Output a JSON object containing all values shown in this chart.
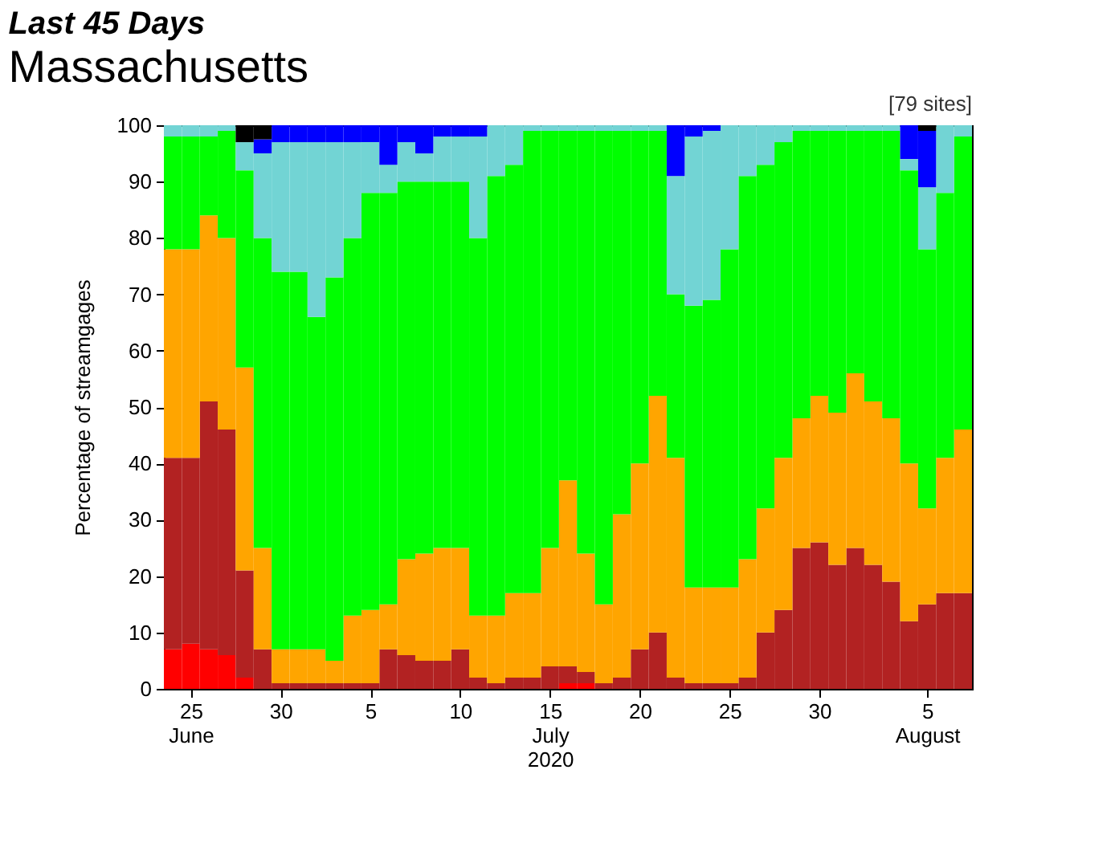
{
  "chart_data": {
    "type": "bar",
    "stacked": true,
    "title": "Last 45 Days",
    "subtitle": "Massachusetts",
    "ylabel": "Percentage of streamgages",
    "annotations": [
      "[79 sites]"
    ],
    "x": [
      "2020-06-24",
      "2020-06-25",
      "2020-06-26",
      "2020-06-27",
      "2020-06-28",
      "2020-06-29",
      "2020-06-30",
      "2020-07-01",
      "2020-07-02",
      "2020-07-03",
      "2020-07-04",
      "2020-07-05",
      "2020-07-06",
      "2020-07-07",
      "2020-07-08",
      "2020-07-09",
      "2020-07-10",
      "2020-07-11",
      "2020-07-12",
      "2020-07-13",
      "2020-07-14",
      "2020-07-15",
      "2020-07-16",
      "2020-07-17",
      "2020-07-18",
      "2020-07-19",
      "2020-07-20",
      "2020-07-21",
      "2020-07-22",
      "2020-07-23",
      "2020-07-24",
      "2020-07-25",
      "2020-07-26",
      "2020-07-27",
      "2020-07-28",
      "2020-07-29",
      "2020-07-30",
      "2020-07-31",
      "2020-08-01",
      "2020-08-02",
      "2020-08-03",
      "2020-08-04",
      "2020-08-05",
      "2020-08-06",
      "2020-08-07"
    ],
    "series": [
      {
        "color": "#ff0000",
        "values": [
          7,
          8,
          7,
          6,
          2,
          0,
          0,
          0,
          0,
          0,
          0,
          0,
          0,
          0,
          0,
          0,
          0,
          0,
          0,
          0,
          0,
          0,
          1,
          1,
          0,
          0,
          0,
          0,
          0,
          0,
          0,
          0,
          0,
          0,
          0,
          0,
          0,
          0,
          0,
          0,
          0,
          0,
          0,
          0,
          0
        ]
      },
      {
        "color": "#b22222",
        "values": [
          34,
          33,
          44,
          40,
          19,
          7,
          1,
          1,
          1,
          1,
          1,
          1,
          7,
          6,
          5,
          5,
          7,
          2,
          1,
          2,
          2,
          4,
          3,
          2,
          1,
          2,
          7,
          10,
          2,
          1,
          1,
          1,
          2,
          10,
          14,
          25,
          26,
          22,
          25,
          22,
          19,
          12,
          15,
          17,
          17
        ]
      },
      {
        "color": "#ffa500",
        "values": [
          37,
          37,
          33,
          34,
          36,
          18,
          6,
          6,
          6,
          4,
          12,
          13,
          8,
          17,
          19,
          20,
          18,
          11,
          12,
          15,
          15,
          21,
          33,
          21,
          14,
          29,
          33,
          42,
          39,
          17,
          17,
          17,
          21,
          22,
          27,
          23,
          26,
          27,
          31,
          29,
          29,
          28,
          17,
          24,
          29
        ]
      },
      {
        "color": "#00ff00",
        "values": [
          20,
          20,
          14,
          19,
          35,
          55,
          67,
          67,
          59,
          68,
          67,
          74,
          73,
          67,
          66,
          65,
          65,
          67,
          78,
          76,
          82,
          74,
          62,
          75,
          84,
          68,
          59,
          47,
          29,
          50,
          51,
          60,
          68,
          61,
          56,
          51,
          47,
          50,
          43,
          48,
          51,
          52,
          46,
          47,
          52
        ]
      },
      {
        "color": "#72d4d4",
        "values": [
          2,
          2,
          2,
          1,
          5,
          15,
          23,
          23,
          31,
          24,
          17,
          9,
          5,
          7,
          5,
          8,
          8,
          18,
          9,
          7,
          1,
          1,
          1,
          1,
          1,
          1,
          1,
          1,
          21,
          30,
          30,
          22,
          9,
          7,
          3,
          1,
          1,
          1,
          1,
          1,
          1,
          2,
          11,
          12,
          2
        ]
      },
      {
        "color": "#0000ff",
        "values": [
          0,
          0,
          0,
          0,
          0,
          2.5,
          3,
          3,
          3,
          3,
          3,
          3,
          7,
          3,
          5,
          2,
          2,
          2,
          0,
          0,
          0,
          0,
          0,
          0,
          0,
          0,
          0,
          0,
          9,
          2,
          1,
          0,
          0,
          0,
          0,
          0,
          0,
          0,
          0,
          0,
          0,
          6,
          10,
          0,
          0
        ]
      },
      {
        "color": "#000000",
        "values": [
          0,
          0,
          0,
          0,
          3,
          2.5,
          0,
          0,
          0,
          0,
          0,
          0,
          0,
          0,
          0,
          0,
          0,
          0,
          0,
          0,
          0,
          0,
          0,
          0,
          0,
          0,
          0,
          0,
          0,
          0,
          0,
          0,
          0,
          0,
          0,
          0,
          0,
          0,
          0,
          0,
          0,
          0,
          1,
          0,
          0
        ]
      }
    ],
    "xlim": [
      "2020-06-23T12:00",
      "2020-08-07T12:00"
    ],
    "xticks": [
      {
        "value": "2020-06-25",
        "label": "25\nJune"
      },
      {
        "value": "2020-06-30",
        "label": "30"
      },
      {
        "value": "2020-07-05",
        "label": "5"
      },
      {
        "value": "2020-07-10",
        "label": "10"
      },
      {
        "value": "2020-07-15",
        "label": "15\nJuly\n2020"
      },
      {
        "value": "2020-07-20",
        "label": "20"
      },
      {
        "value": "2020-07-25",
        "label": "25"
      },
      {
        "value": "2020-07-30",
        "label": "30"
      },
      {
        "value": "2020-08-05",
        "label": "5\nAugust"
      }
    ],
    "ylim": [
      0,
      100
    ],
    "yticks": [
      0,
      10,
      20,
      30,
      40,
      50,
      60,
      70,
      80,
      90,
      100
    ],
    "grid": false,
    "legend": false
  }
}
